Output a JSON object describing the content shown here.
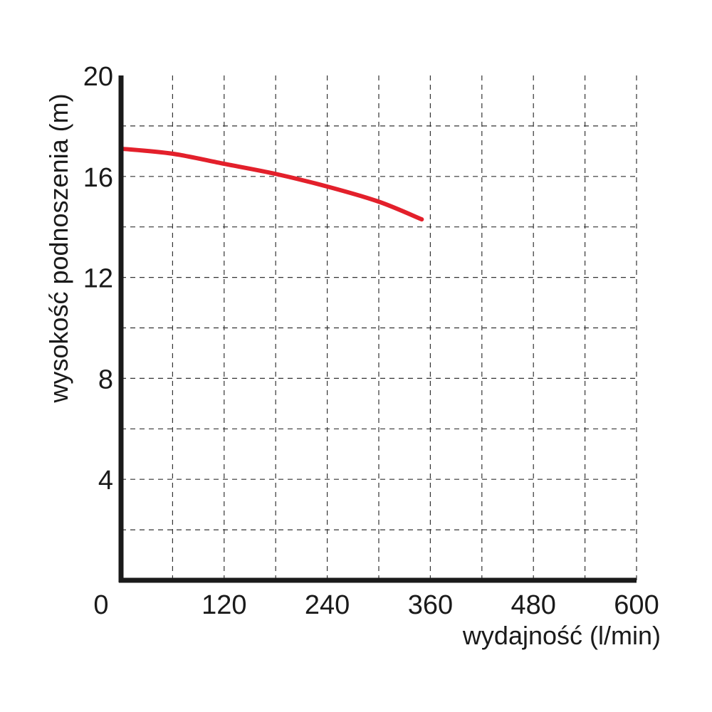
{
  "chart_data": {
    "type": "line",
    "title": "",
    "xlabel": "wydajność (l/min)",
    "ylabel": "wysokość podnoszenia (m)",
    "xlim": [
      0,
      600
    ],
    "ylim": [
      0,
      20
    ],
    "origin_label": "0",
    "x_ticks": [
      120,
      240,
      360,
      480,
      600
    ],
    "y_ticks": [
      4,
      8,
      12,
      16,
      20
    ],
    "x_grid_step": 60,
    "y_grid_step": 2,
    "grid": true,
    "legend": "none",
    "series": [
      {
        "color": "#e3202b",
        "x": [
          0,
          60,
          120,
          180,
          240,
          300,
          350
        ],
        "y": [
          17.1,
          16.9,
          16.5,
          16.1,
          15.6,
          15.0,
          14.3
        ]
      }
    ]
  }
}
